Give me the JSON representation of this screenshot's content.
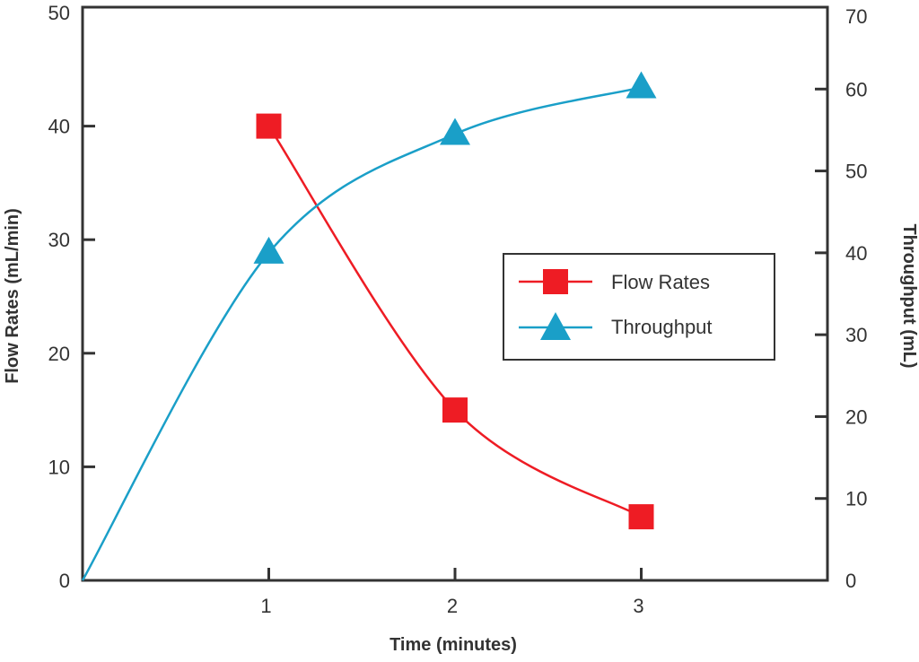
{
  "chart_data": {
    "type": "line",
    "title": "",
    "xlabel": "Time (minutes)",
    "ylabel": "Flow Rates (mL/min)",
    "y2label": "Throughput (mL)",
    "xlim": [
      0,
      4
    ],
    "ylim": [
      0,
      50
    ],
    "y2lim": [
      0,
      70
    ],
    "x_ticks": [
      "1",
      "2",
      "3"
    ],
    "y_ticks": [
      "0",
      "10",
      "20",
      "30",
      "40",
      "50"
    ],
    "y2_ticks": [
      "0",
      "10",
      "20",
      "30",
      "40",
      "50",
      "60",
      "70"
    ],
    "grid": false,
    "legend_position": "center-right",
    "series": [
      {
        "name": "Flow Rates",
        "axis": "left",
        "marker": "square",
        "color": "#ee1c24",
        "x": [
          1,
          2,
          3
        ],
        "y": [
          40,
          15,
          5.6
        ]
      },
      {
        "name": "Throughput",
        "axis": "right",
        "marker": "triangle",
        "color": "#1a9fc8",
        "x": [
          0,
          1,
          2,
          3
        ],
        "y": [
          0,
          40,
          54.5,
          60.2
        ]
      }
    ]
  }
}
